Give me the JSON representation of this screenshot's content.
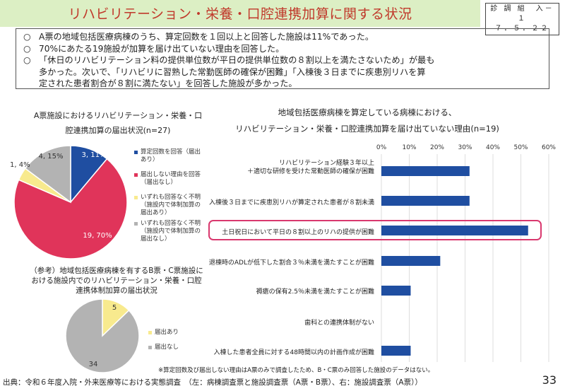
{
  "header": {
    "title": "リハビリテーション・栄養・口腔連携加算に関する状況",
    "docid_line1": "診 調 組　入－１",
    "docid_line2": "７．５．２２"
  },
  "summary": [
    {
      "bullet": "○",
      "text": "A票の地域包括医療病棟のうち、算定回数を１回以上と回答した施設は11%であった。"
    },
    {
      "bullet": "○",
      "text": "70%にあたる19施設が加算を届け出ていない理由を回答した。"
    },
    {
      "bullet": "○",
      "text": "「休日のリハビリテーション料の提供単位数が平日の提供単位数の８割以上を満たさないため」が最も"
    },
    {
      "bullet": "",
      "text": "多かった。次いで、「リハビリに習熟した常勤医師の確保が困難」「入棟後３日までに疾患別リハを算"
    },
    {
      "bullet": "",
      "text": "定された患者割合が８割に満たない」を回答した施設が多かった。"
    }
  ],
  "pie1": {
    "title_line1": "A票施設におけるリハビリテーション・栄養・口",
    "title_line2": "腔連携加算の届出状況(n=27)",
    "labels": [
      "3, 11%",
      "19, 70%",
      "1, 4%",
      "4, 15%"
    ],
    "legend": [
      [
        "算定回数を回答（届出",
        "あり）"
      ],
      [
        "届出しない理由を回答",
        "（届出なし）"
      ],
      [
        "いずれも回答なく不明",
        "（施設内で体制加算の",
        "届出あり）"
      ],
      [
        "いずれも回答なく不明",
        "（施設内で体制加算の",
        "届出なし）"
      ]
    ]
  },
  "pie2": {
    "title_line1": "（参考）地域包括医療病棟を有するB票・C票施設に",
    "title_line2": "おける施設内でのリハビリテーション・栄養・口腔",
    "title_line3": "連携体制加算の届出状況",
    "labels": [
      "5",
      "34"
    ],
    "legend": [
      "届出あり",
      "届出なし"
    ]
  },
  "bar": {
    "title_line1": "地域包括医療病棟を算定している病棟における、",
    "title_line2": "リハビリテーション・栄養・口腔連携加算を届け出ていない理由(n=19)",
    "tick_labels": [
      "0%",
      "10%",
      "20%",
      "30%",
      "40%",
      "50%",
      "60%"
    ],
    "cat_labels": [
      [
        "リハビリテーション経験３年以上",
        "＋適切な研修を受けた常勤医師の確保が困難"
      ],
      [
        "入棟後３日までに疾患別リハが算定された患者が８割未満"
      ],
      [
        "土日祝日において平日の８割以上のリハの提供が困難"
      ],
      [
        "退棟時のADLが低下した割合３％未満を満たすことが困難"
      ],
      [
        "褥瘡の保有2.5％未満を満たすことが困難"
      ],
      [
        "歯科との連携体制がない"
      ],
      [
        "入棟した患者全員に対する48時間以内の計画作成が困難"
      ]
    ]
  },
  "note": "※算定回数及び届出しない理由はA票のみで調査したため、B・C票のみ回答した施設のデータはない。",
  "footer": "出典：令和６年度入院・外来医療等における実態調査　（左：病棟調査票と施設調査票（A票・B票）、右：施設調査票（A票））",
  "page_number": "33",
  "colors": {
    "blue": "#1f4ea1",
    "crimson": "#e0345a",
    "yellow": "#f8ea8e",
    "gray": "#b3b3b3",
    "highlight": "#d9386e",
    "title_bg": "#dcefc4",
    "title_text": "#c0392b"
  },
  "chart_data": [
    {
      "type": "pie",
      "title": "A票施設におけるリハビリテーション・栄養・口腔連携加算の届出状況(n=27)",
      "categories": [
        "算定回数を回答（届出あり）",
        "届出しない理由を回答（届出なし）",
        "いずれも回答なく不明（施設内で体制加算の届出あり）",
        "いずれも回答なく不明（施設内で体制加算の届出なし）"
      ],
      "values": [
        3,
        19,
        1,
        4
      ],
      "percent_labels": [
        "11%",
        "70%",
        "4%",
        "15%"
      ],
      "colors": [
        "#1f4ea1",
        "#e0345a",
        "#f8ea8e",
        "#b3b3b3"
      ],
      "legend": "right"
    },
    {
      "type": "pie",
      "title": "（参考）地域包括医療病棟を有するB票・C票施設における施設内でのリハビリテーション・栄養・口腔連携体制加算の届出状況",
      "categories": [
        "届出あり",
        "届出なし"
      ],
      "values": [
        5,
        34
      ],
      "colors": [
        "#f8ea8e",
        "#b3b3b3"
      ],
      "legend": "right"
    },
    {
      "type": "bar",
      "orientation": "horizontal",
      "title": "地域包括医療病棟を算定している病棟における、リハビリテーション・栄養・口腔連携加算を届け出ていない理由(n=19)",
      "categories": [
        "リハビリテーション経験３年以上＋適切な研修を受けた常勤医師の確保が困難",
        "入棟後３日までに疾患別リハが算定された患者が８割未満",
        "土日祝日において平日の８割以上のリハの提供が困難",
        "退棟時のADLが低下した割合３％未満を満たすことが困難",
        "褥瘡の保有2.5％未満を満たすことが困難",
        "歯科との連携体制がない",
        "入棟した患者全員に対する48時間以内の計画作成が困難"
      ],
      "values": [
        31.6,
        31.6,
        52.6,
        21.1,
        10.5,
        0,
        10.5
      ],
      "xlim": [
        0,
        60
      ],
      "x_unit": "%",
      "highlighted_category": "土日祝日において平日の８割以上のリハの提供が困難",
      "grid": true
    }
  ]
}
